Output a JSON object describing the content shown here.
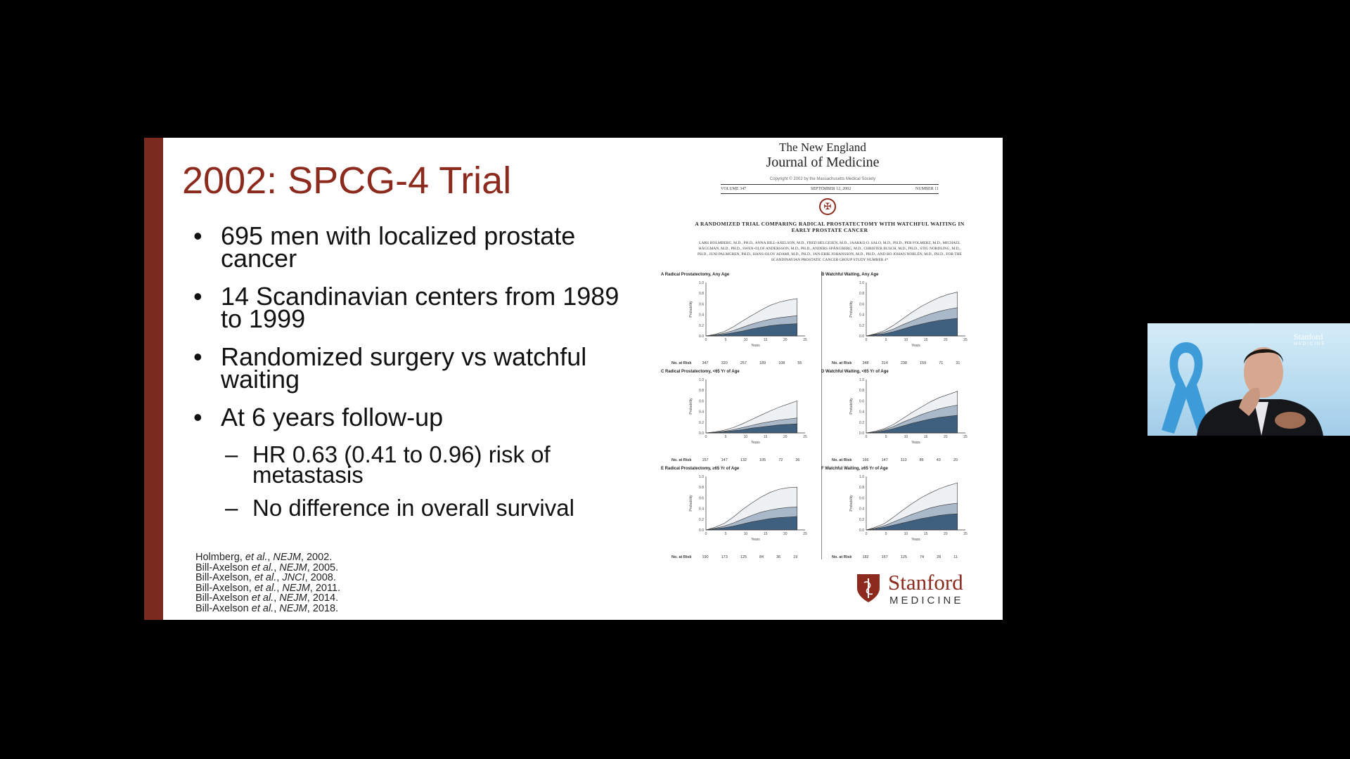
{
  "slide": {
    "title": "2002: SPCG-4 Trial",
    "bullets": [
      {
        "level": 1,
        "text": "695 men with localized prostate cancer"
      },
      {
        "level": 1,
        "text": "14 Scandinavian centers from 1989 to 1999"
      },
      {
        "level": 1,
        "text": "Randomized surgery vs watchful waiting"
      },
      {
        "level": 1,
        "text": "At 6 years follow-up"
      },
      {
        "level": 2,
        "text": "HR 0.63 (0.41 to 0.96) risk of metastasis"
      },
      {
        "level": 2,
        "text": "No difference in overall survival"
      }
    ],
    "references": [
      {
        "author": "Holmberg, ",
        "etal": "et al.",
        "sep": ", ",
        "journal": "NEJM",
        "year": ", 2002."
      },
      {
        "author": "Bill-Axelson ",
        "etal": "et al.",
        "sep": ", ",
        "journal": "NEJM",
        "year": ", 2005."
      },
      {
        "author": "Bill-Axelson, ",
        "etal": "et al.",
        "sep": ", ",
        "journal": "JNCI",
        "year": ", 2008."
      },
      {
        "author": "Bill-Axelson, ",
        "etal": "et al.",
        "sep": ", ",
        "journal": "NEJM",
        "year": ", 2011."
      },
      {
        "author": "Bill-Axelson ",
        "etal": "et al.",
        "sep": ", ",
        "journal": "NEJM",
        "year": ", 2014."
      },
      {
        "author": "Bill-Axelson ",
        "etal": "et al.",
        "sep": ", ",
        "journal": "NEJM",
        "year": ", 2018."
      }
    ],
    "accent_color": "#7a2a1f",
    "title_color": "#8c2a1d"
  },
  "paper": {
    "journal_line1": "The New England",
    "journal_line2": "Journal of Medicine",
    "copyright": "Copyright © 2002 by the Massachusetts Medical Society",
    "volume": "VOLUME 347",
    "date": "SEPTEMBER 12, 2002",
    "number": "NUMBER 11",
    "article_title": "A RANDOMIZED TRIAL COMPARING RADICAL PROSTATECTOMY WITH WATCHFUL WAITING IN EARLY PROSTATE CANCER",
    "authors": "LARS HOLMBERG, M.D., PH.D., ANNA BILL-AXELSON, M.D., FRED HELGESEN, M.D., JAAKKO O. SALO, M.D., PH.D., PER FOLMERZ, M.D., MICHAEL HÄGGMAN, M.D., PH.D., SWEN-OLOF ANDERSSON, M.D., PH.D., ANDERS SPÅNGBERG, M.D., CHRISTER BUSCH, M.D., PH.D., STIG NORDLING, M.D., PH.D., JUNI PALMGREN, PH.D., HANS-OLOV ADAMI, M.D., PH.D., JAN-ERIK JOHANSSON, M.D., PH.D., AND BO JOHAN NORLÉN, M.D., PH.D., FOR THE SCANDINAVIAN PROSTATIC CANCER GROUP STUDY NUMBER 4*",
    "panels": [
      {
        "label": "A",
        "title": "Radical Prostatectomy, Any Age",
        "risk_label": "No. at Risk",
        "risk": [
          "347",
          "320",
          "257",
          "189",
          "108",
          "55"
        ],
        "curve": [
          0,
          0.03,
          0.08,
          0.17,
          0.28,
          0.38,
          0.48,
          0.57,
          0.63,
          0.67,
          0.7
        ],
        "mid": [
          0,
          0.02,
          0.05,
          0.1,
          0.16,
          0.22,
          0.27,
          0.31,
          0.34,
          0.36,
          0.38
        ],
        "low": [
          0,
          0.01,
          0.03,
          0.06,
          0.09,
          0.13,
          0.16,
          0.19,
          0.21,
          0.22,
          0.23
        ]
      },
      {
        "label": "B",
        "title": "Watchful Waiting, Any Age",
        "risk_label": "No. at Risk",
        "risk": [
          "348",
          "314",
          "238",
          "159",
          "71",
          "31"
        ],
        "curve": [
          0,
          0.04,
          0.1,
          0.2,
          0.32,
          0.44,
          0.55,
          0.64,
          0.72,
          0.78,
          0.82
        ],
        "mid": [
          0,
          0.03,
          0.07,
          0.13,
          0.21,
          0.28,
          0.35,
          0.41,
          0.46,
          0.5,
          0.53
        ],
        "low": [
          0,
          0.02,
          0.04,
          0.08,
          0.13,
          0.18,
          0.22,
          0.26,
          0.29,
          0.31,
          0.33
        ]
      },
      {
        "label": "C",
        "title": "Radical Prostatectomy, <65 Yr of Age",
        "risk_label": "No. at Risk",
        "risk": [
          "157",
          "147",
          "132",
          "105",
          "72",
          "36"
        ],
        "curve": [
          0,
          0.02,
          0.05,
          0.1,
          0.17,
          0.25,
          0.33,
          0.41,
          0.48,
          0.54,
          0.6
        ],
        "mid": [
          0,
          0.01,
          0.03,
          0.06,
          0.1,
          0.14,
          0.18,
          0.21,
          0.24,
          0.26,
          0.28
        ],
        "low": [
          0,
          0.01,
          0.02,
          0.04,
          0.06,
          0.09,
          0.11,
          0.13,
          0.15,
          0.16,
          0.17
        ]
      },
      {
        "label": "D",
        "title": "Watchful Waiting, <65 Yr of Age",
        "risk_label": "No. at Risk",
        "risk": [
          "166",
          "147",
          "113",
          "85",
          "43",
          "20"
        ],
        "curve": [
          0,
          0.03,
          0.08,
          0.16,
          0.27,
          0.38,
          0.48,
          0.58,
          0.66,
          0.72,
          0.78
        ],
        "mid": [
          0,
          0.02,
          0.06,
          0.12,
          0.2,
          0.27,
          0.34,
          0.4,
          0.45,
          0.49,
          0.52
        ],
        "low": [
          0,
          0.01,
          0.04,
          0.08,
          0.13,
          0.18,
          0.22,
          0.26,
          0.29,
          0.31,
          0.33
        ]
      },
      {
        "label": "E",
        "title": "Radical Prostatectomy, ≥65 Yr of Age",
        "risk_label": "No. at Risk",
        "risk": [
          "190",
          "173",
          "125",
          "84",
          "36",
          "19"
        ],
        "curve": [
          0,
          0.05,
          0.12,
          0.24,
          0.38,
          0.5,
          0.61,
          0.7,
          0.76,
          0.79,
          0.8
        ],
        "mid": [
          0,
          0.03,
          0.07,
          0.13,
          0.2,
          0.27,
          0.33,
          0.37,
          0.4,
          0.42,
          0.43
        ],
        "low": [
          0,
          0.02,
          0.04,
          0.07,
          0.11,
          0.15,
          0.18,
          0.21,
          0.23,
          0.24,
          0.25
        ]
      },
      {
        "label": "F",
        "title": "Watchful Waiting, ≥65 Yr of Age",
        "risk_label": "No. at Risk",
        "risk": [
          "182",
          "167",
          "125",
          "74",
          "28",
          "11"
        ],
        "curve": [
          0,
          0.05,
          0.12,
          0.24,
          0.37,
          0.49,
          0.6,
          0.69,
          0.77,
          0.83,
          0.88
        ],
        "mid": [
          0,
          0.03,
          0.08,
          0.15,
          0.22,
          0.29,
          0.35,
          0.41,
          0.45,
          0.48,
          0.5
        ],
        "low": [
          0,
          0.02,
          0.05,
          0.09,
          0.13,
          0.17,
          0.21,
          0.24,
          0.27,
          0.29,
          0.3
        ]
      }
    ],
    "y_ticks": [
      "0.0",
      "0.2",
      "0.4",
      "0.6",
      "0.8",
      "1.0"
    ],
    "x_ticks": [
      "0",
      "5",
      "10",
      "15",
      "20",
      "25"
    ],
    "xlabel": "Years",
    "ylabel": "Probability",
    "colors": {
      "top": "#eef1f4",
      "mid": "#a9b9c9",
      "low": "#3f5f7f",
      "line": "#333333"
    }
  },
  "logo": {
    "line1": "Stanford",
    "line2": "MEDICINE",
    "color": "#8c2a1d"
  },
  "webcam": {
    "logo_line1": "Stanford",
    "logo_line2": "MEDICINE"
  }
}
